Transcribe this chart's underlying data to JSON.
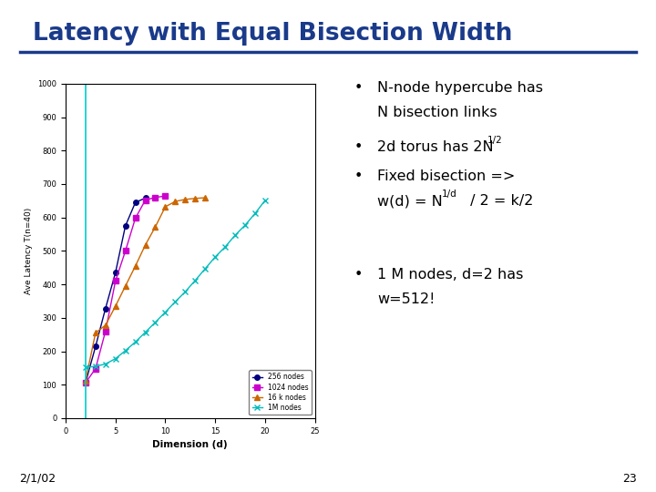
{
  "title": "Latency with Equal Bisection Width",
  "title_color": "#1a3a8a",
  "bg_color": "#ffffff",
  "date_label": "2/1/02",
  "page_num": "23",
  "xlabel": "Dimension (d)",
  "ylabel": "Ave Latency T(n=40)",
  "xlim": [
    0,
    25
  ],
  "ylim": [
    0,
    1000
  ],
  "yticks": [
    0,
    100,
    200,
    300,
    400,
    500,
    600,
    700,
    800,
    900,
    1000
  ],
  "xticks": [
    0,
    5,
    10,
    15,
    20,
    25
  ],
  "series_256": {
    "label": "256 nodes",
    "color": "#000080",
    "marker": "o",
    "x": [
      2,
      3,
      4,
      5,
      6,
      7,
      8
    ],
    "y": [
      106,
      214,
      328,
      435,
      575,
      645,
      658
    ]
  },
  "series_1024": {
    "label": "1024 nodes",
    "color": "#cc00cc",
    "marker": "s",
    "x": [
      2,
      3,
      4,
      5,
      6,
      7,
      8,
      9,
      10
    ],
    "y": [
      106,
      148,
      260,
      410,
      500,
      598,
      652,
      660,
      664
    ]
  },
  "series_16k": {
    "label": "16 k nodes",
    "color": "#cc6600",
    "marker": "^",
    "x": [
      2,
      3,
      4,
      5,
      6,
      7,
      8,
      9,
      10,
      11,
      12,
      13,
      14
    ],
    "y": [
      112,
      255,
      278,
      335,
      395,
      455,
      518,
      572,
      632,
      648,
      654,
      657,
      659
    ]
  },
  "series_1M": {
    "label": "1M nodes",
    "color": "#00bbbb",
    "marker": "x",
    "x": [
      2,
      3,
      4,
      5,
      6,
      7,
      8,
      9,
      10,
      11,
      12,
      13,
      14,
      15,
      16,
      17,
      18,
      19,
      20
    ],
    "y": [
      152,
      155,
      162,
      178,
      202,
      228,
      257,
      287,
      317,
      348,
      378,
      412,
      447,
      482,
      512,
      547,
      577,
      612,
      651
    ]
  },
  "vline_x": 2,
  "vline_color": "#00cccc"
}
